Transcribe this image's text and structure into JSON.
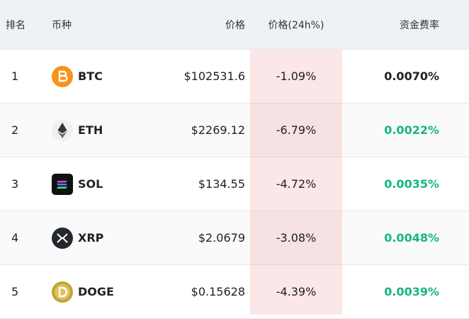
{
  "header": {
    "columns": [
      "排名",
      "币种",
      "价格",
      "价格(24h%)",
      "资金费率"
    ]
  },
  "rows": [
    {
      "rank": "1",
      "symbol": "BTC",
      "price": "$102531.6",
      "change": "-1.09%",
      "funding_rate": "0.0070%"
    },
    {
      "rank": "2",
      "symbol": "ETH",
      "price": "$2269.12",
      "change": "-6.79%",
      "funding_rate": "0.0022%"
    },
    {
      "rank": "3",
      "symbol": "SOL",
      "price": "$134.55",
      "change": "-4.72%",
      "funding_rate": "0.0035%"
    },
    {
      "rank": "4",
      "symbol": "XRP",
      "price": "$2.0679",
      "change": "-3.08%",
      "funding_rate": "0.0048%"
    },
    {
      "rank": "5",
      "symbol": "DOGE",
      "price": "$0.15628",
      "change": "-4.39%",
      "funding_rate": "0.0039%"
    }
  ]
}
